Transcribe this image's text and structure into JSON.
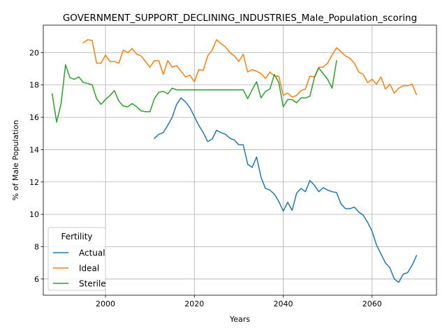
{
  "chart_data": {
    "type": "line",
    "title": "GOVERNMENT_SUPPORT_DECLINING_INDUSTRIES_Male_Population_scoring",
    "xlabel": "Years",
    "ylabel": "% of Male Population",
    "xlim": [
      1986,
      2074.5
    ],
    "ylim": [
      5.0,
      21.7
    ],
    "xticks": [
      2000,
      2020,
      2040,
      2060
    ],
    "yticks": [
      6,
      8,
      10,
      12,
      14,
      16,
      18,
      20
    ],
    "grid": true,
    "legend": {
      "title": "Fertility",
      "position": "lower-left"
    },
    "series": [
      {
        "name": "Actual",
        "color": "#1f77b4",
        "x": [
          2011,
          2012,
          2013,
          2014,
          2015,
          2016,
          2017,
          2018,
          2019,
          2020,
          2021,
          2022,
          2023,
          2024,
          2025,
          2026,
          2027,
          2028,
          2029,
          2030,
          2031,
          2032,
          2033,
          2034,
          2035,
          2036,
          2037,
          2038,
          2039,
          2040,
          2041,
          2042,
          2043,
          2044,
          2045,
          2046,
          2047,
          2048,
          2049,
          2050,
          2051,
          2052,
          2053,
          2054,
          2055,
          2056,
          2057,
          2058,
          2059,
          2060,
          2061,
          2062,
          2063,
          2064,
          2065,
          2066,
          2067,
          2068,
          2069,
          2070
        ],
        "values": [
          14.7,
          14.95,
          15.05,
          15.5,
          16.0,
          16.8,
          17.2,
          16.95,
          16.6,
          16.05,
          15.5,
          15.05,
          14.5,
          14.65,
          15.2,
          15.05,
          14.95,
          14.7,
          14.6,
          14.3,
          14.3,
          13.1,
          12.9,
          13.55,
          12.3,
          11.6,
          11.5,
          11.25,
          10.8,
          10.2,
          10.75,
          10.25,
          11.3,
          11.6,
          11.4,
          12.1,
          11.8,
          11.4,
          11.65,
          11.5,
          11.4,
          11.35,
          10.65,
          10.35,
          10.35,
          10.45,
          10.15,
          9.95,
          9.5,
          8.95,
          8.1,
          7.55,
          7.0,
          6.7,
          6.0,
          5.8,
          6.3,
          6.4,
          6.85,
          7.45
        ]
      },
      {
        "name": "Ideal",
        "color": "#ff7f0e",
        "x": [
          1995,
          1996,
          1997,
          1998,
          1999,
          2000,
          2001,
          2002,
          2003,
          2004,
          2005,
          2006,
          2007,
          2008,
          2009,
          2010,
          2011,
          2012,
          2013,
          2014,
          2015,
          2016,
          2017,
          2018,
          2019,
          2020,
          2021,
          2022,
          2023,
          2024,
          2025,
          2026,
          2027,
          2028,
          2029,
          2030,
          2031,
          2032,
          2033,
          2034,
          2035,
          2036,
          2037,
          2038,
          2039,
          2040,
          2041,
          2042,
          2043,
          2044,
          2045,
          2046,
          2047,
          2048,
          2049,
          2050,
          2051,
          2052,
          2053,
          2054,
          2055,
          2056,
          2057,
          2058,
          2059,
          2060,
          2061,
          2062,
          2063,
          2064,
          2065,
          2066,
          2067,
          2068,
          2069,
          2070
        ],
        "values": [
          20.6,
          20.8,
          20.75,
          19.35,
          19.35,
          19.85,
          19.45,
          19.45,
          19.35,
          20.15,
          20.0,
          20.25,
          19.9,
          19.8,
          19.45,
          19.1,
          19.5,
          19.5,
          18.65,
          19.5,
          19.1,
          19.2,
          18.85,
          18.5,
          18.6,
          18.2,
          18.95,
          18.9,
          19.8,
          20.15,
          20.8,
          20.55,
          20.35,
          20.0,
          19.8,
          19.45,
          19.9,
          18.8,
          18.95,
          18.85,
          18.7,
          18.4,
          18.8,
          18.55,
          18.55,
          17.35,
          17.5,
          17.25,
          17.35,
          17.65,
          17.75,
          18.55,
          18.5,
          19.1,
          19.1,
          19.35,
          19.85,
          20.3,
          20.05,
          19.8,
          19.65,
          19.35,
          18.8,
          18.65,
          18.15,
          18.35,
          18.05,
          18.5,
          17.75,
          18.05,
          17.5,
          17.8,
          17.95,
          17.95,
          18.05,
          17.4
        ]
      },
      {
        "name": "Sterile",
        "color": "#2ca02c",
        "x": [
          1988,
          1989,
          1990,
          1991,
          1992,
          1993,
          1994,
          1995,
          1996,
          1997,
          1998,
          1999,
          2000,
          2001,
          2002,
          2003,
          2004,
          2005,
          2006,
          2007,
          2008,
          2009,
          2010,
          2011,
          2012,
          2013,
          2014,
          2015,
          2016,
          2017,
          2018,
          2019,
          2020,
          2021,
          2022,
          2023,
          2024,
          2025,
          2026,
          2027,
          2028,
          2029,
          2030,
          2031,
          2032,
          2033,
          2034,
          2035,
          2036,
          2037,
          2038,
          2039,
          2040,
          2041,
          2042,
          2043,
          2044,
          2045,
          2046,
          2047,
          2048,
          2049,
          2050,
          2051,
          2052
        ],
        "values": [
          17.45,
          15.7,
          16.85,
          19.25,
          18.45,
          18.35,
          18.5,
          18.15,
          18.1,
          18.0,
          17.15,
          16.8,
          17.1,
          17.35,
          17.65,
          17.0,
          16.7,
          16.65,
          16.85,
          16.65,
          16.4,
          16.35,
          16.35,
          17.15,
          17.55,
          17.6,
          17.45,
          17.8,
          17.7,
          17.7,
          17.7,
          17.7,
          17.7,
          17.7,
          17.7,
          17.7,
          17.7,
          17.7,
          17.7,
          17.7,
          17.7,
          17.7,
          17.7,
          17.7,
          17.15,
          17.7,
          18.2,
          17.2,
          17.6,
          17.75,
          18.65,
          18.15,
          16.65,
          17.1,
          17.1,
          16.9,
          17.2,
          17.2,
          17.3,
          18.45,
          19.05,
          18.7,
          18.35,
          17.8,
          19.5
        ]
      }
    ]
  }
}
